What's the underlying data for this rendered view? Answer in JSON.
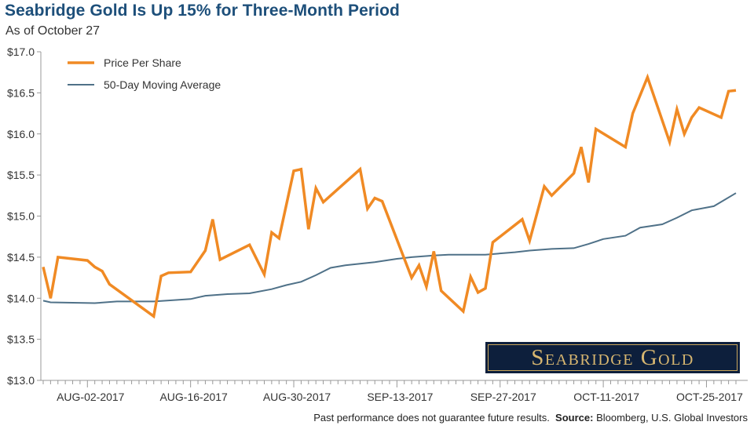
{
  "header": {
    "title": "Seabridge Gold Is Up 15% for Three-Month Period",
    "subtitle": "As of October 27"
  },
  "logo": {
    "text": "Seabridge Gold"
  },
  "footer": {
    "disclaimer": "Past performance does not guarantee future results.",
    "source_label": "Source:",
    "source_text": "Bloomberg, U.S. Global Investors"
  },
  "colors": {
    "price": "#f08a24",
    "average": "#4f7188",
    "axis": "#999999",
    "title": "#1d4f7a"
  },
  "chart_data": {
    "type": "line",
    "title": "Seabridge Gold Is Up 15% for Three-Month Period",
    "subtitle": "As of October 27",
    "xlabel": "",
    "ylabel": "",
    "ylim": [
      13.0,
      17.0
    ],
    "yticks": [
      13.0,
      13.5,
      14.0,
      14.5,
      15.0,
      15.5,
      16.0,
      16.5,
      17.0
    ],
    "ytick_labels": [
      "$13.0",
      "$13.5",
      "$14.0",
      "$14.5",
      "$15.0",
      "$15.5",
      "$16.0",
      "$16.5",
      "$17.0"
    ],
    "xlim": [
      "2017-07-27",
      "2017-10-29"
    ],
    "xtick_dates": [
      "2017-08-02",
      "2017-08-16",
      "2017-08-30",
      "2017-09-13",
      "2017-09-27",
      "2017-10-11",
      "2017-10-25"
    ],
    "xtick_labels": [
      "AUG-02-2017",
      "AUG-16-2017",
      "AUG-30-2017",
      "SEP-13-2017",
      "SEP-27-2017",
      "OCT-11-2017",
      "OCT-25-2017"
    ],
    "grid": false,
    "legend": "top-left",
    "series": [
      {
        "name": "Price Per Share",
        "color": "#f08a24",
        "points": [
          {
            "x": "2017-07-27",
            "y": 14.38
          },
          {
            "x": "2017-07-28",
            "y": 14.0
          },
          {
            "x": "2017-07-29",
            "y": 14.5
          },
          {
            "x": "2017-08-02",
            "y": 14.46
          },
          {
            "x": "2017-08-03",
            "y": 14.38
          },
          {
            "x": "2017-08-04",
            "y": 14.33
          },
          {
            "x": "2017-08-05",
            "y": 14.17
          },
          {
            "x": "2017-08-11",
            "y": 13.78
          },
          {
            "x": "2017-08-12",
            "y": 14.27
          },
          {
            "x": "2017-08-13",
            "y": 14.31
          },
          {
            "x": "2017-08-16",
            "y": 14.32
          },
          {
            "x": "2017-08-18",
            "y": 14.58
          },
          {
            "x": "2017-08-19",
            "y": 14.96
          },
          {
            "x": "2017-08-20",
            "y": 14.47
          },
          {
            "x": "2017-08-24",
            "y": 14.65
          },
          {
            "x": "2017-08-26",
            "y": 14.29
          },
          {
            "x": "2017-08-27",
            "y": 14.8
          },
          {
            "x": "2017-08-28",
            "y": 14.73
          },
          {
            "x": "2017-08-30",
            "y": 15.55
          },
          {
            "x": "2017-08-31",
            "y": 15.57
          },
          {
            "x": "2017-09-01",
            "y": 14.84
          },
          {
            "x": "2017-09-02",
            "y": 15.34
          },
          {
            "x": "2017-09-03",
            "y": 15.17
          },
          {
            "x": "2017-09-08",
            "y": 15.57
          },
          {
            "x": "2017-09-09",
            "y": 15.09
          },
          {
            "x": "2017-09-10",
            "y": 15.22
          },
          {
            "x": "2017-09-11",
            "y": 15.18
          },
          {
            "x": "2017-09-15",
            "y": 14.25
          },
          {
            "x": "2017-09-16",
            "y": 14.4
          },
          {
            "x": "2017-09-17",
            "y": 14.14
          },
          {
            "x": "2017-09-18",
            "y": 14.57
          },
          {
            "x": "2017-09-19",
            "y": 14.09
          },
          {
            "x": "2017-09-22",
            "y": 13.84
          },
          {
            "x": "2017-09-23",
            "y": 14.26
          },
          {
            "x": "2017-09-24",
            "y": 14.07
          },
          {
            "x": "2017-09-25",
            "y": 14.12
          },
          {
            "x": "2017-09-26",
            "y": 14.68
          },
          {
            "x": "2017-09-30",
            "y": 14.96
          },
          {
            "x": "2017-10-01",
            "y": 14.7
          },
          {
            "x": "2017-10-03",
            "y": 15.36
          },
          {
            "x": "2017-10-04",
            "y": 15.25
          },
          {
            "x": "2017-10-07",
            "y": 15.52
          },
          {
            "x": "2017-10-08",
            "y": 15.84
          },
          {
            "x": "2017-10-09",
            "y": 15.41
          },
          {
            "x": "2017-10-10",
            "y": 16.06
          },
          {
            "x": "2017-10-14",
            "y": 15.84
          },
          {
            "x": "2017-10-15",
            "y": 16.25
          },
          {
            "x": "2017-10-17",
            "y": 16.69
          },
          {
            "x": "2017-10-20",
            "y": 15.9
          },
          {
            "x": "2017-10-21",
            "y": 16.3
          },
          {
            "x": "2017-10-22",
            "y": 16.0
          },
          {
            "x": "2017-10-23",
            "y": 16.2
          },
          {
            "x": "2017-10-24",
            "y": 16.32
          },
          {
            "x": "2017-10-27",
            "y": 16.2
          },
          {
            "x": "2017-10-28",
            "y": 16.52
          },
          {
            "x": "2017-10-29",
            "y": 16.53
          }
        ]
      },
      {
        "name": "50-Day Moving Average",
        "color": "#4f7188",
        "points": [
          {
            "x": "2017-07-27",
            "y": 13.97
          },
          {
            "x": "2017-07-28",
            "y": 13.95
          },
          {
            "x": "2017-08-03",
            "y": 13.94
          },
          {
            "x": "2017-08-06",
            "y": 13.96
          },
          {
            "x": "2017-08-09",
            "y": 13.96
          },
          {
            "x": "2017-08-11",
            "y": 13.96
          },
          {
            "x": "2017-08-16",
            "y": 13.99
          },
          {
            "x": "2017-08-18",
            "y": 14.03
          },
          {
            "x": "2017-08-21",
            "y": 14.05
          },
          {
            "x": "2017-08-24",
            "y": 14.06
          },
          {
            "x": "2017-08-27",
            "y": 14.11
          },
          {
            "x": "2017-08-29",
            "y": 14.16
          },
          {
            "x": "2017-08-31",
            "y": 14.2
          },
          {
            "x": "2017-09-02",
            "y": 14.28
          },
          {
            "x": "2017-09-04",
            "y": 14.37
          },
          {
            "x": "2017-09-06",
            "y": 14.4
          },
          {
            "x": "2017-09-10",
            "y": 14.44
          },
          {
            "x": "2017-09-13",
            "y": 14.48
          },
          {
            "x": "2017-09-15",
            "y": 14.5
          },
          {
            "x": "2017-09-18",
            "y": 14.52
          },
          {
            "x": "2017-09-20",
            "y": 14.53
          },
          {
            "x": "2017-09-22",
            "y": 14.53
          },
          {
            "x": "2017-09-25",
            "y": 14.53
          },
          {
            "x": "2017-09-29",
            "y": 14.56
          },
          {
            "x": "2017-10-01",
            "y": 14.58
          },
          {
            "x": "2017-10-04",
            "y": 14.6
          },
          {
            "x": "2017-10-07",
            "y": 14.61
          },
          {
            "x": "2017-10-09",
            "y": 14.66
          },
          {
            "x": "2017-10-11",
            "y": 14.72
          },
          {
            "x": "2017-10-14",
            "y": 14.76
          },
          {
            "x": "2017-10-16",
            "y": 14.86
          },
          {
            "x": "2017-10-19",
            "y": 14.9
          },
          {
            "x": "2017-10-21",
            "y": 14.98
          },
          {
            "x": "2017-10-23",
            "y": 15.07
          },
          {
            "x": "2017-10-26",
            "y": 15.12
          },
          {
            "x": "2017-10-29",
            "y": 15.28
          }
        ]
      }
    ]
  }
}
